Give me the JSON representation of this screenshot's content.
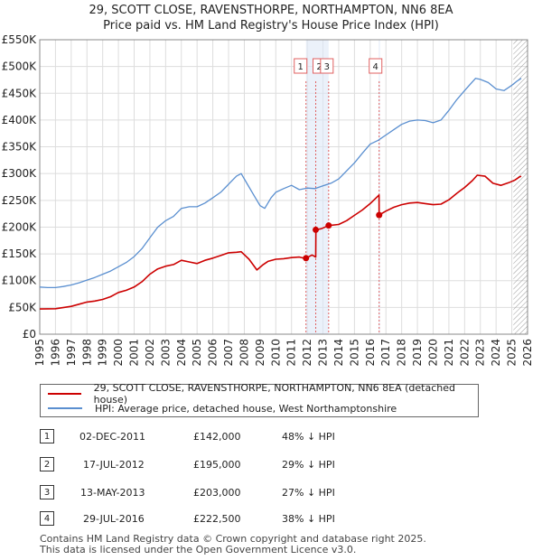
{
  "title_line1": "29, SCOTT CLOSE, RAVENSTHORPE, NORTHAMPTON, NN6 8EA",
  "title_line2": "Price paid vs. HM Land Registry's House Price Index (HPI)",
  "colors": {
    "property": "#cc0000",
    "hpi": "#5a8fd0",
    "marker_line": "#e06060",
    "grid": "#dddddd",
    "shade": "#dde8f7"
  },
  "chart_data": {
    "type": "line",
    "ylim": [
      0,
      550000
    ],
    "xlim": [
      1995,
      2026
    ],
    "y_ticks": [
      {
        "value": 0,
        "label": "£0"
      },
      {
        "value": 50000,
        "label": "£50K"
      },
      {
        "value": 100000,
        "label": "£100K"
      },
      {
        "value": 150000,
        "label": "£150K"
      },
      {
        "value": 200000,
        "label": "£200K"
      },
      {
        "value": 250000,
        "label": "£250K"
      },
      {
        "value": 300000,
        "label": "£300K"
      },
      {
        "value": 350000,
        "label": "£350K"
      },
      {
        "value": 400000,
        "label": "£400K"
      },
      {
        "value": 450000,
        "label": "£450K"
      },
      {
        "value": 500000,
        "label": "£500K"
      },
      {
        "value": 550000,
        "label": "£550K"
      }
    ],
    "x_ticks": [
      "1995",
      "1996",
      "1997",
      "1998",
      "1999",
      "2000",
      "2001",
      "2002",
      "2003",
      "2004",
      "2005",
      "2006",
      "2007",
      "2008",
      "2009",
      "2010",
      "2011",
      "2012",
      "2013",
      "2014",
      "2015",
      "2016",
      "2017",
      "2018",
      "2019",
      "2020",
      "2021",
      "2022",
      "2023",
      "2024",
      "2025",
      "2026"
    ],
    "forecast_start": 2025.1,
    "series": [
      {
        "name": "29, SCOTT CLOSE, RAVENSTHORPE, NORTHAMPTON, NN6 8EA (detached house)",
        "key": "property",
        "x": [
          1995.0,
          1996.0,
          1997.0,
          1997.5,
          1998.0,
          1998.5,
          1999.0,
          1999.5,
          2000.0,
          2000.5,
          2001.0,
          2001.5,
          2002.0,
          2002.5,
          2003.0,
          2003.5,
          2004.0,
          2004.5,
          2005.0,
          2005.5,
          2006.0,
          2006.5,
          2007.0,
          2007.5,
          2007.8,
          2008.3,
          2008.8,
          2009.2,
          2009.5,
          2010.0,
          2010.5,
          2011.0,
          2011.5,
          2011.92,
          2011.93,
          2012.3,
          2012.54,
          2012.55,
          2012.9,
          2013.36,
          2013.37,
          2014.0,
          2014.5,
          2015.0,
          2015.5,
          2016.0,
          2016.56,
          2016.57,
          2017.0,
          2017.5,
          2018.0,
          2018.5,
          2019.0,
          2019.5,
          2020.0,
          2020.5,
          2021.0,
          2021.5,
          2022.0,
          2022.5,
          2022.8,
          2023.3,
          2023.8,
          2024.3,
          2024.8,
          2025.2,
          2025.5,
          2025.6
        ],
        "y": [
          47000,
          47500,
          52000,
          56000,
          60000,
          62000,
          65000,
          70000,
          78000,
          82000,
          88000,
          98000,
          112000,
          122000,
          127000,
          130000,
          138000,
          135000,
          132000,
          138000,
          142000,
          147000,
          152000,
          153000,
          154000,
          140000,
          120000,
          130000,
          136000,
          140000,
          141000,
          143000,
          144000,
          141000,
          142000,
          148000,
          144000,
          195000,
          197000,
          203000,
          203000,
          205000,
          212000,
          222000,
          232000,
          244000,
          260000,
          222500,
          230000,
          237000,
          242000,
          245000,
          246000,
          244000,
          242000,
          243000,
          251000,
          263000,
          274000,
          287000,
          297000,
          295000,
          282000,
          278000,
          283000,
          288000,
          294000,
          295000
        ]
      },
      {
        "name": "HPI: Average price, detached house, West Northamptonshire",
        "key": "hpi",
        "x": [
          1995.0,
          1995.5,
          1996.0,
          1996.5,
          1997.0,
          1997.5,
          1998.0,
          1998.5,
          1999.0,
          1999.5,
          2000.0,
          2000.5,
          2001.0,
          2001.5,
          2002.0,
          2002.5,
          2003.0,
          2003.5,
          2004.0,
          2004.5,
          2005.0,
          2005.5,
          2006.0,
          2006.5,
          2007.0,
          2007.5,
          2007.8,
          2008.2,
          2008.6,
          2009.0,
          2009.3,
          2009.7,
          2010.0,
          2010.5,
          2011.0,
          2011.5,
          2012.0,
          2012.5,
          2013.0,
          2013.5,
          2014.0,
          2014.5,
          2015.0,
          2015.5,
          2016.0,
          2016.5,
          2017.0,
          2017.5,
          2018.0,
          2018.5,
          2019.0,
          2019.5,
          2020.0,
          2020.5,
          2021.0,
          2021.5,
          2022.0,
          2022.3,
          2022.7,
          2023.0,
          2023.5,
          2024.0,
          2024.5,
          2025.0,
          2025.3,
          2025.6
        ],
        "y": [
          88000,
          87000,
          87000,
          89000,
          92000,
          96000,
          101000,
          106000,
          112000,
          118000,
          126000,
          134000,
          145000,
          160000,
          180000,
          200000,
          212000,
          220000,
          235000,
          238000,
          238000,
          245000,
          255000,
          265000,
          280000,
          295000,
          300000,
          280000,
          260000,
          240000,
          235000,
          255000,
          265000,
          272000,
          278000,
          270000,
          273000,
          272000,
          277000,
          282000,
          290000,
          305000,
          320000,
          338000,
          355000,
          362000,
          372000,
          382000,
          392000,
          398000,
          400000,
          399000,
          395000,
          400000,
          418000,
          438000,
          455000,
          465000,
          478000,
          476000,
          470000,
          458000,
          455000,
          465000,
          472000,
          478000
        ]
      }
    ],
    "sales": [
      {
        "id": "1",
        "x": 2011.92,
        "price": 142000
      },
      {
        "id": "2",
        "x": 2012.54,
        "price": 195000
      },
      {
        "id": "3",
        "x": 2013.36,
        "price": 203000
      },
      {
        "id": "4",
        "x": 2016.57,
        "price": 222500
      }
    ]
  },
  "legend": {
    "property": "29, SCOTT CLOSE, RAVENSTHORPE, NORTHAMPTON, NN6 8EA (detached house)",
    "hpi": "HPI: Average price, detached house, West Northamptonshire"
  },
  "table": [
    {
      "num": "1",
      "date": "02-DEC-2011",
      "price": "£142,000",
      "hpi": "48% ↓ HPI"
    },
    {
      "num": "2",
      "date": "17-JUL-2012",
      "price": "£195,000",
      "hpi": "29% ↓ HPI"
    },
    {
      "num": "3",
      "date": "13-MAY-2013",
      "price": "£203,000",
      "hpi": "27% ↓ HPI"
    },
    {
      "num": "4",
      "date": "29-JUL-2016",
      "price": "£222,500",
      "hpi": "38% ↓ HPI"
    }
  ],
  "footer_line1": "Contains HM Land Registry data © Crown copyright and database right 2025.",
  "footer_line2": "This data is licensed under the Open Government Licence v3.0."
}
